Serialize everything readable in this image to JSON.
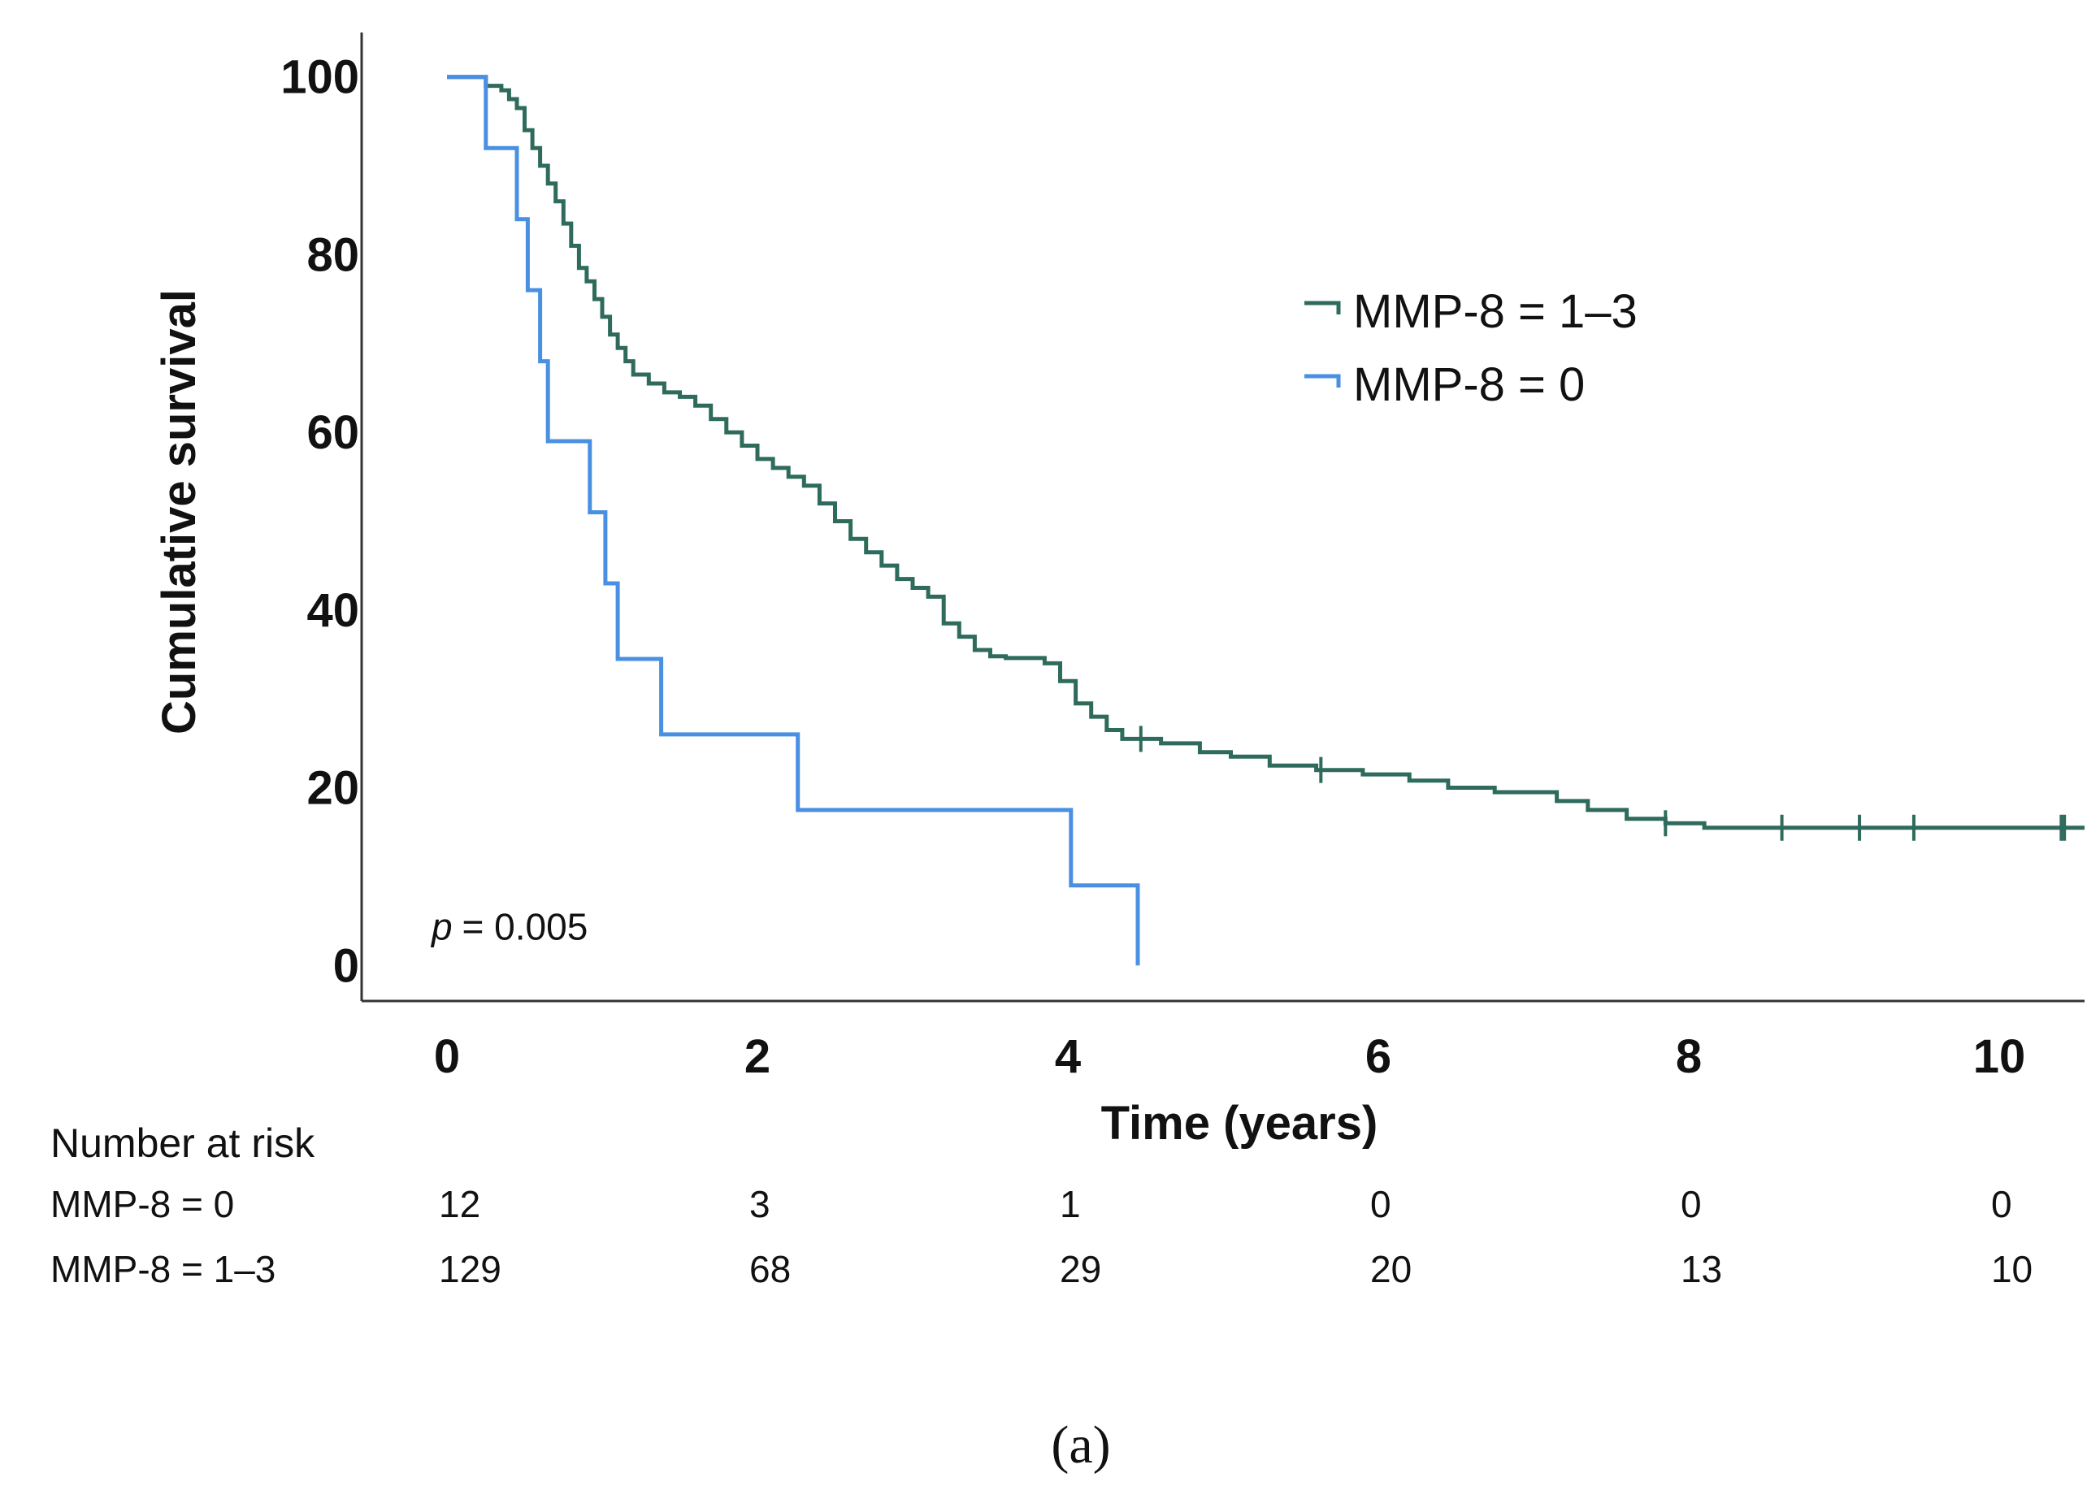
{
  "chart_data": {
    "type": "line",
    "subtype": "kaplan-meier step",
    "xlabel": "Time (years)",
    "ylabel": "Cumulative survival",
    "xlim": [
      -0.55,
      10.55
    ],
    "ylim": [
      -4,
      105
    ],
    "x_ticks": [
      0,
      2,
      4,
      6,
      8,
      10
    ],
    "y_ticks": [
      0,
      20,
      40,
      60,
      80,
      100
    ],
    "grid": false,
    "legend_position": "upper-right",
    "series": [
      {
        "name": "MMP-8 = 1–3",
        "color": "#2e6b5c",
        "points": [
          [
            0,
            100
          ],
          [
            0.22,
            100
          ],
          [
            0.25,
            99
          ],
          [
            0.35,
            98.5
          ],
          [
            0.4,
            97.5
          ],
          [
            0.45,
            96.5
          ],
          [
            0.5,
            94
          ],
          [
            0.55,
            92
          ],
          [
            0.6,
            90
          ],
          [
            0.65,
            88
          ],
          [
            0.7,
            86
          ],
          [
            0.75,
            83.5
          ],
          [
            0.8,
            81
          ],
          [
            0.85,
            78.5
          ],
          [
            0.9,
            77
          ],
          [
            0.95,
            75
          ],
          [
            1.0,
            73
          ],
          [
            1.05,
            71
          ],
          [
            1.1,
            69.5
          ],
          [
            1.15,
            68
          ],
          [
            1.2,
            66.5
          ],
          [
            1.3,
            65.5
          ],
          [
            1.4,
            64.5
          ],
          [
            1.5,
            64
          ],
          [
            1.6,
            63
          ],
          [
            1.7,
            61.5
          ],
          [
            1.8,
            60
          ],
          [
            1.9,
            58.5
          ],
          [
            2.0,
            57
          ],
          [
            2.1,
            56
          ],
          [
            2.2,
            55
          ],
          [
            2.3,
            54
          ],
          [
            2.4,
            52
          ],
          [
            2.5,
            50
          ],
          [
            2.6,
            48
          ],
          [
            2.7,
            46.5
          ],
          [
            2.8,
            45
          ],
          [
            2.9,
            43.5
          ],
          [
            3.0,
            42.5
          ],
          [
            3.1,
            41.5
          ],
          [
            3.2,
            38.5
          ],
          [
            3.3,
            37
          ],
          [
            3.4,
            35.5
          ],
          [
            3.5,
            34.8
          ],
          [
            3.6,
            34.6
          ],
          [
            3.75,
            34.6
          ],
          [
            3.85,
            34
          ],
          [
            3.95,
            32
          ],
          [
            4.05,
            29.5
          ],
          [
            4.15,
            28
          ],
          [
            4.25,
            26.5
          ],
          [
            4.35,
            25.5
          ],
          [
            4.6,
            25
          ],
          [
            4.85,
            24
          ],
          [
            5.05,
            23.5
          ],
          [
            5.3,
            22.5
          ],
          [
            5.6,
            22
          ],
          [
            5.9,
            21.5
          ],
          [
            6.2,
            20.8
          ],
          [
            6.45,
            20
          ],
          [
            6.75,
            19.5
          ],
          [
            7.05,
            19.5
          ],
          [
            7.15,
            18.5
          ],
          [
            7.35,
            17.5
          ],
          [
            7.6,
            16.5
          ],
          [
            7.85,
            16
          ],
          [
            8.1,
            15.5
          ],
          [
            10.55,
            15.5
          ]
        ],
        "censor_times": [
          4.47,
          5.63,
          7.85,
          8.6,
          9.1,
          9.45,
          10.4,
          10.42
        ]
      },
      {
        "name": "MMP-8 = 0",
        "color": "#4a90e2",
        "points": [
          [
            0,
            100
          ],
          [
            0.25,
            100
          ],
          [
            0.25,
            92
          ],
          [
            0.45,
            92
          ],
          [
            0.45,
            84
          ],
          [
            0.52,
            84
          ],
          [
            0.52,
            76
          ],
          [
            0.6,
            76
          ],
          [
            0.6,
            68
          ],
          [
            0.65,
            68
          ],
          [
            0.65,
            59
          ],
          [
            0.92,
            59
          ],
          [
            0.92,
            51
          ],
          [
            1.02,
            51
          ],
          [
            1.02,
            43
          ],
          [
            1.1,
            43
          ],
          [
            1.1,
            34.5
          ],
          [
            1.38,
            34.5
          ],
          [
            1.38,
            26
          ],
          [
            2.26,
            26
          ],
          [
            2.26,
            17.5
          ],
          [
            4.02,
            17.5
          ],
          [
            4.02,
            9
          ],
          [
            4.45,
            9
          ],
          [
            4.45,
            0
          ]
        ],
        "censor_times": []
      }
    ],
    "annotations": [
      {
        "p_symbol": "p",
        "p_value": "= 0.005",
        "at_x": -0.1,
        "at_y": 4
      }
    ],
    "risk_table": {
      "title": "Number at risk",
      "times": [
        0,
        2,
        4,
        6,
        8,
        10
      ],
      "rows": [
        {
          "label": "MMP-8 = 0",
          "values": [
            "12",
            "3",
            "1",
            "0",
            "0",
            "0"
          ]
        },
        {
          "label": "MMP-8 = 1–3",
          "values": [
            "129",
            "68",
            "29",
            "20",
            "13",
            "10"
          ]
        }
      ]
    },
    "panel_label": "(a)"
  }
}
